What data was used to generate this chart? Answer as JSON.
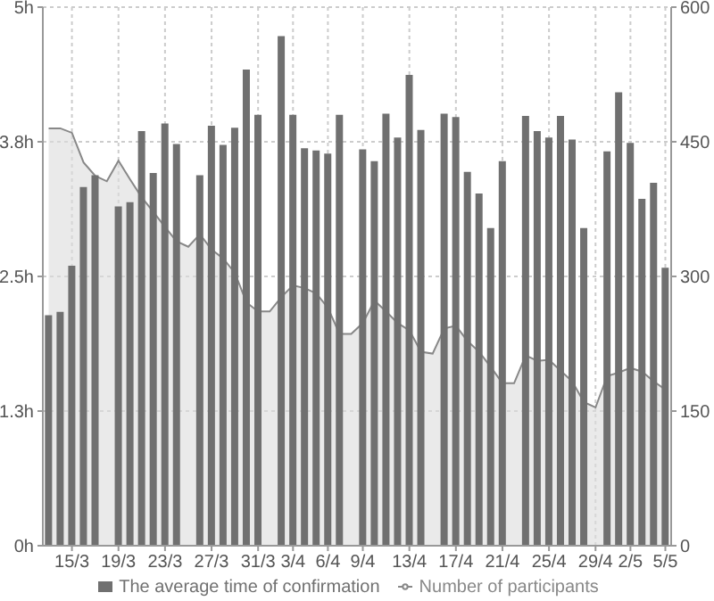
{
  "chart_data": {
    "type": "bar",
    "categories": [
      null,
      null,
      "15/3",
      null,
      null,
      null,
      "19/3",
      null,
      null,
      null,
      "23/3",
      null,
      null,
      null,
      "27/3",
      null,
      null,
      null,
      "31/3",
      null,
      null,
      "3/4",
      null,
      null,
      "6/4",
      null,
      null,
      "9/4",
      null,
      null,
      null,
      "13/4",
      null,
      null,
      null,
      "17/4",
      null,
      null,
      null,
      "21/4",
      null,
      null,
      null,
      "25/4",
      null,
      null,
      null,
      "29/4",
      null,
      null,
      "2/5",
      null,
      null,
      "5/5"
    ],
    "series": [
      {
        "name": "The average time of confirmation",
        "color": "#707070",
        "values": [
          2.14,
          2.17,
          2.6,
          3.33,
          3.44,
          null,
          3.15,
          3.19,
          3.85,
          3.46,
          3.92,
          3.73,
          null,
          3.44,
          3.9,
          3.72,
          3.88,
          4.42,
          4.0,
          null,
          4.73,
          4.0,
          3.69,
          3.67,
          3.64,
          4.0,
          null,
          3.68,
          3.57,
          4.01,
          3.79,
          4.37,
          3.86,
          null,
          4.01,
          3.98,
          3.47,
          3.27,
          2.95,
          3.57,
          null,
          3.99,
          3.85,
          3.79,
          3.99,
          3.77,
          2.95,
          null,
          3.66,
          4.21,
          3.74,
          3.22,
          3.37,
          2.58
        ]
      },
      {
        "name": "Number of participants",
        "type": "area",
        "axis": "y2",
        "color": "#888888",
        "values": [
          465,
          465,
          460,
          427,
          412,
          406,
          429,
          408,
          388,
          372,
          355,
          339,
          333,
          347,
          330,
          320,
          304,
          271,
          261,
          261,
          277,
          290,
          287,
          281,
          265,
          236,
          236,
          248,
          273,
          261,
          248,
          240,
          216,
          214,
          242,
          245,
          228,
          216,
          199,
          181,
          181,
          212,
          206,
          207,
          195,
          183,
          160,
          154,
          189,
          193,
          198,
          194,
          183,
          174
        ]
      }
    ],
    "ylim": [
      0,
      5
    ],
    "yticks": [
      {
        "value": 0,
        "label": "0h"
      },
      {
        "value": 1.25,
        "label": "1.3h"
      },
      {
        "value": 2.5,
        "label": "2.5h"
      },
      {
        "value": 3.75,
        "label": "3.8h"
      },
      {
        "value": 5,
        "label": "5h"
      }
    ],
    "y2lim": [
      0,
      600
    ],
    "y2ticks": [
      0,
      150,
      300,
      450,
      600
    ],
    "grid": true,
    "legend": "bottom",
    "marker": "none"
  }
}
